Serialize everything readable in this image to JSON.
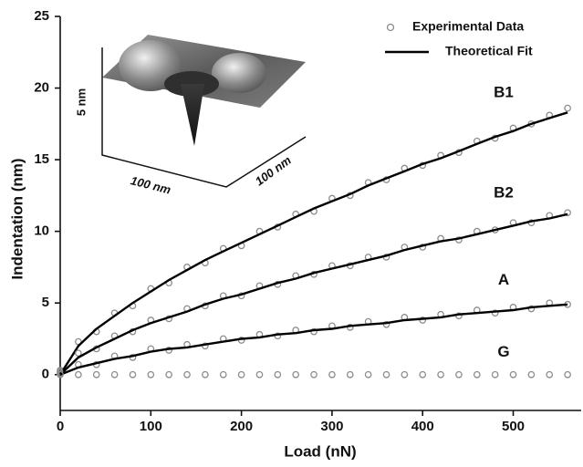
{
  "chart_data": {
    "type": "scatter",
    "xlabel": "Load (nN)",
    "ylabel": "Indentation (nm)",
    "xlim": [
      0,
      575
    ],
    "ylim": [
      -2.5,
      25
    ],
    "xticks": [
      0,
      100,
      200,
      300,
      400,
      500
    ],
    "yticks": [
      0,
      5,
      10,
      15,
      20,
      25
    ],
    "legend_position": "upper right",
    "legend": [
      {
        "name": "Experimental Data",
        "color": "#8c8c8c",
        "marker": "circle"
      },
      {
        "name": "Theoretical Fit",
        "color": "#000000",
        "marker": "line"
      }
    ],
    "x": [
      0,
      20,
      40,
      60,
      80,
      100,
      120,
      140,
      160,
      180,
      200,
      220,
      240,
      260,
      280,
      300,
      320,
      340,
      360,
      380,
      400,
      420,
      440,
      460,
      480,
      500,
      520,
      540,
      560
    ],
    "curves": [
      {
        "label": "B1",
        "data": [
          0.3,
          2.3,
          3.0,
          4.3,
          4.8,
          6.0,
          6.4,
          7.5,
          7.8,
          8.8,
          9.0,
          10.0,
          10.3,
          11.2,
          11.4,
          12.3,
          12.5,
          13.4,
          13.6,
          14.4,
          14.6,
          15.3,
          15.5,
          16.3,
          16.5,
          17.2,
          17.5,
          18.1,
          18.6
        ],
        "fit": [
          0,
          2.0,
          3.2,
          4.1,
          5.0,
          5.8,
          6.6,
          7.3,
          8.0,
          8.6,
          9.2,
          9.8,
          10.4,
          11.0,
          11.6,
          12.1,
          12.6,
          13.2,
          13.7,
          14.2,
          14.7,
          15.1,
          15.6,
          16.1,
          16.6,
          17.0,
          17.5,
          17.9,
          18.3
        ]
      },
      {
        "label": "B2",
        "data": [
          0.2,
          1.5,
          1.8,
          2.7,
          3.0,
          3.8,
          3.9,
          4.6,
          4.8,
          5.5,
          5.5,
          6.2,
          6.3,
          6.9,
          7.0,
          7.6,
          7.6,
          8.2,
          8.2,
          8.9,
          8.9,
          9.5,
          9.4,
          10.0,
          10.1,
          10.6,
          10.6,
          11.1,
          11.3
        ],
        "fit": [
          0,
          1.2,
          1.9,
          2.5,
          3.1,
          3.6,
          4.0,
          4.4,
          4.9,
          5.3,
          5.6,
          6.0,
          6.4,
          6.7,
          7.1,
          7.4,
          7.7,
          8.0,
          8.3,
          8.7,
          9.0,
          9.3,
          9.5,
          9.8,
          10.1,
          10.4,
          10.7,
          10.9,
          11.2
        ]
      },
      {
        "label": "A",
        "data": [
          0.1,
          0.7,
          0.7,
          1.3,
          1.2,
          1.8,
          1.7,
          2.1,
          2.0,
          2.5,
          2.4,
          2.8,
          2.7,
          3.1,
          3.0,
          3.4,
          3.3,
          3.7,
          3.5,
          4.0,
          3.8,
          4.2,
          4.1,
          4.5,
          4.3,
          4.7,
          4.6,
          5.0,
          4.9
        ],
        "fit": [
          0,
          0.5,
          0.8,
          1.1,
          1.3,
          1.6,
          1.8,
          1.9,
          2.1,
          2.3,
          2.5,
          2.6,
          2.8,
          2.9,
          3.1,
          3.2,
          3.4,
          3.5,
          3.6,
          3.8,
          3.9,
          4.0,
          4.2,
          4.3,
          4.4,
          4.5,
          4.7,
          4.8,
          4.9
        ]
      },
      {
        "label": "G",
        "data": [
          0,
          0,
          0,
          0,
          0,
          0,
          0,
          0,
          0,
          0,
          0,
          0,
          0,
          0,
          0,
          0,
          0,
          0,
          0,
          0,
          0,
          0,
          0,
          0,
          0,
          0,
          0,
          0,
          0
        ]
      }
    ],
    "inset": {
      "height_label": "5 nm",
      "width_label": "100 nm",
      "depth_label": "100 nm"
    }
  }
}
